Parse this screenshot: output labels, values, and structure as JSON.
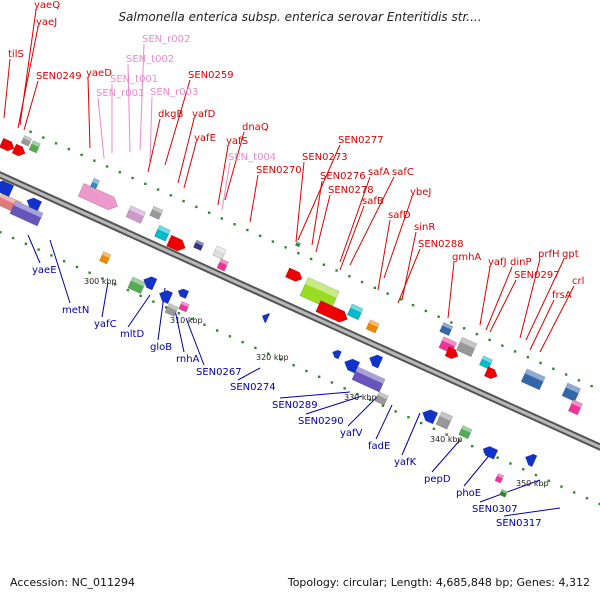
{
  "header": {
    "title": "Salmonella enterica subsp. enterica serovar Enteritidis str...."
  },
  "footer": {
    "accession": "Accession: NC_011294",
    "summary": "Topology: circular; Length: 4,685,848 bp; Genes: 4,312"
  },
  "colors": {
    "forward_label": "#dd0000",
    "reverse_label": "#0000aa",
    "rna_label": "#ee88cc",
    "backbone": "#888888"
  },
  "ruler": [
    {
      "label": "300 kbp"
    },
    {
      "label": "310 kbp"
    },
    {
      "label": "320 kbp"
    },
    {
      "label": "330 kbp"
    },
    {
      "label": "340 kbp"
    },
    {
      "label": "350 kbp"
    }
  ],
  "top_labels": [
    {
      "text": "yaeQ",
      "type": "fwd"
    },
    {
      "text": "tilS",
      "type": "fwd"
    },
    {
      "text": "yaeJ",
      "type": "fwd"
    },
    {
      "text": "SEN0249",
      "type": "fwd"
    },
    {
      "text": "SEN_r002",
      "type": "rna"
    },
    {
      "text": "SEN_t002",
      "type": "rna"
    },
    {
      "text": "yaeD",
      "type": "fwd"
    },
    {
      "text": "SEN_t001",
      "type": "rna"
    },
    {
      "text": "SEN_r001",
      "type": "rna"
    },
    {
      "text": "SEN_r003",
      "type": "rna"
    },
    {
      "text": "SEN0259",
      "type": "fwd"
    },
    {
      "text": "dkgB",
      "type": "fwd"
    },
    {
      "text": "yafD",
      "type": "fwd"
    },
    {
      "text": "dnaQ",
      "type": "fwd"
    },
    {
      "text": "yafE",
      "type": "fwd"
    },
    {
      "text": "yafS",
      "type": "fwd"
    },
    {
      "text": "SEN_t004",
      "type": "rna"
    },
    {
      "text": "SEN0277",
      "type": "fwd"
    },
    {
      "text": "SEN0273",
      "type": "fwd"
    },
    {
      "text": "SEN0270",
      "type": "fwd"
    },
    {
      "text": "SEN0276",
      "type": "fwd"
    },
    {
      "text": "safA",
      "type": "fwd"
    },
    {
      "text": "safC",
      "type": "fwd"
    },
    {
      "text": "SEN0278",
      "type": "fwd"
    },
    {
      "text": "ybeJ",
      "type": "fwd"
    },
    {
      "text": "safB",
      "type": "fwd"
    },
    {
      "text": "safD",
      "type": "fwd"
    },
    {
      "text": "sinR",
      "type": "fwd"
    },
    {
      "text": "SEN0288",
      "type": "fwd"
    },
    {
      "text": "gmhA",
      "type": "fwd"
    },
    {
      "text": "prfH",
      "type": "fwd"
    },
    {
      "text": "gpt",
      "type": "fwd"
    },
    {
      "text": "yafJ",
      "type": "fwd"
    },
    {
      "text": "dinP",
      "type": "fwd"
    },
    {
      "text": "SEN0297",
      "type": "fwd"
    },
    {
      "text": "crl",
      "type": "fwd"
    },
    {
      "text": "frsA",
      "type": "fwd"
    }
  ],
  "bottom_labels": [
    {
      "text": "yaeE"
    },
    {
      "text": "metN"
    },
    {
      "text": "yafC"
    },
    {
      "text": "mltD"
    },
    {
      "text": "gloB"
    },
    {
      "text": "rnhA"
    },
    {
      "text": "SEN0267"
    },
    {
      "text": "SEN0274"
    },
    {
      "text": "SEN0289"
    },
    {
      "text": "SEN0290"
    },
    {
      "text": "yafV"
    },
    {
      "text": "fadE"
    },
    {
      "text": "yafK"
    },
    {
      "text": "pepD"
    },
    {
      "text": "phoE"
    },
    {
      "text": "SEN0307"
    },
    {
      "text": "SEN0317"
    }
  ]
}
